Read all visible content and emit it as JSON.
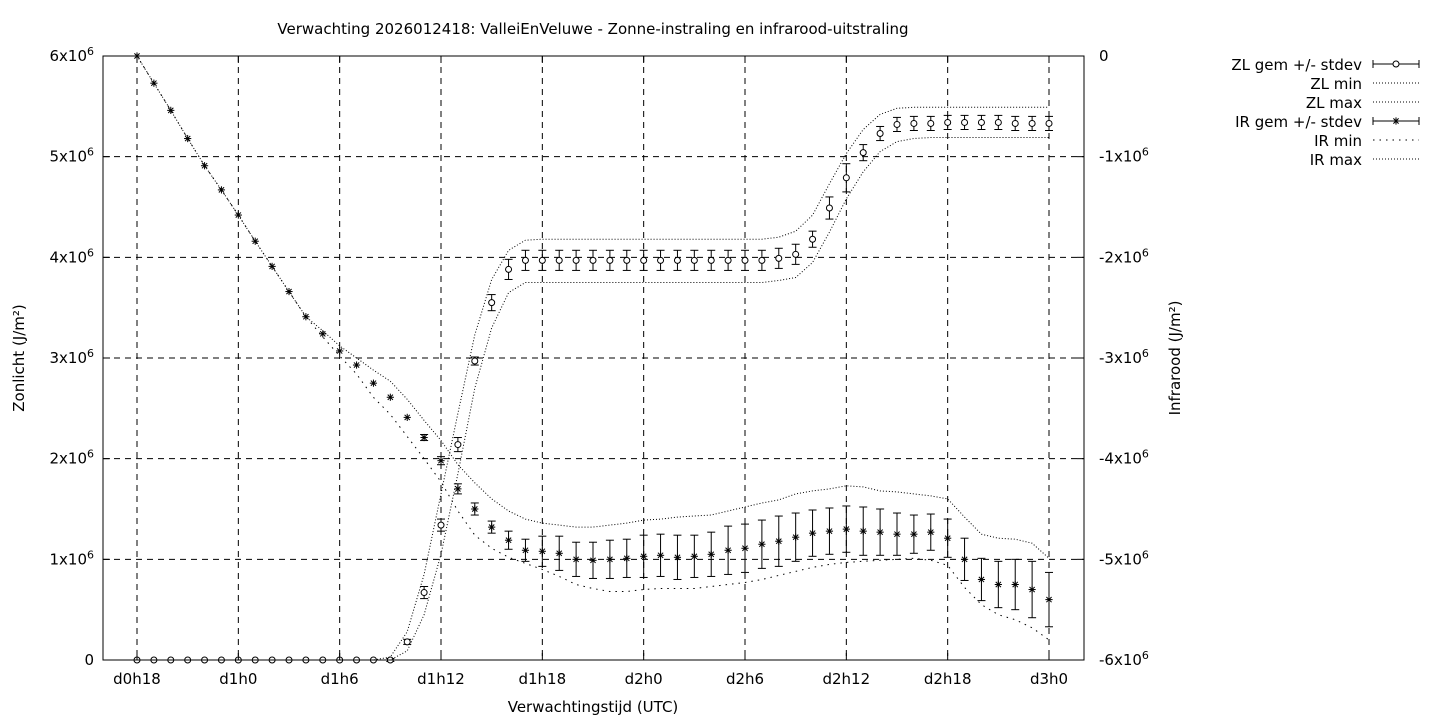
{
  "chart_data": {
    "type": "line",
    "title": "Verwachting 2026012418: ValleiEnVeluwe - Zonne-instraling en infrarood-uitstraling",
    "xlabel": "Verwachtingstijd (UTC)",
    "ylabel_left": "Zonlicht (J/m²)",
    "ylabel_right": "Infrarood (J/m²)",
    "x_unit": "hours since d0h0",
    "xlim": [
      18,
      72
    ],
    "ylim_left": [
      0,
      6000000
    ],
    "ylim_right": [
      -6000000,
      0
    ],
    "grid": true,
    "legend_position": "outside-top-right",
    "x_ticks": [
      {
        "x": 18,
        "label": "d0h18"
      },
      {
        "x": 24,
        "label": "d1h0"
      },
      {
        "x": 30,
        "label": "d1h6"
      },
      {
        "x": 36,
        "label": "d1h12"
      },
      {
        "x": 42,
        "label": "d1h18"
      },
      {
        "x": 48,
        "label": "d2h0"
      },
      {
        "x": 54,
        "label": "d2h6"
      },
      {
        "x": 60,
        "label": "d2h12"
      },
      {
        "x": 66,
        "label": "d2h18"
      },
      {
        "x": 72,
        "label": "d3h0"
      }
    ],
    "y_ticks_left": [
      {
        "y": 0,
        "base": "0",
        "exp": ""
      },
      {
        "y": 1000000,
        "base": "1x10",
        "exp": "6"
      },
      {
        "y": 2000000,
        "base": "2x10",
        "exp": "6"
      },
      {
        "y": 3000000,
        "base": "3x10",
        "exp": "6"
      },
      {
        "y": 4000000,
        "base": "4x10",
        "exp": "6"
      },
      {
        "y": 5000000,
        "base": "5x10",
        "exp": "6"
      },
      {
        "y": 6000000,
        "base": "6x10",
        "exp": "6"
      }
    ],
    "y_ticks_right": [
      {
        "y": -6000000,
        "base": "-6x10",
        "exp": "6"
      },
      {
        "y": -5000000,
        "base": "-5x10",
        "exp": "6"
      },
      {
        "y": -4000000,
        "base": "-4x10",
        "exp": "6"
      },
      {
        "y": -3000000,
        "base": "-3x10",
        "exp": "6"
      },
      {
        "y": -2000000,
        "base": "-2x10",
        "exp": "6"
      },
      {
        "y": -1000000,
        "base": "-1x10",
        "exp": "6"
      },
      {
        "y": 0,
        "base": "0",
        "exp": ""
      }
    ],
    "x": [
      18,
      19,
      20,
      21,
      22,
      23,
      24,
      25,
      26,
      27,
      28,
      29,
      30,
      31,
      32,
      33,
      34,
      35,
      36,
      37,
      38,
      39,
      40,
      41,
      42,
      43,
      44,
      45,
      46,
      47,
      48,
      49,
      50,
      51,
      52,
      53,
      54,
      55,
      56,
      57,
      58,
      59,
      60,
      61,
      62,
      63,
      64,
      65,
      66,
      67,
      68,
      69,
      70,
      71,
      72
    ],
    "series": [
      {
        "name": "ZL gem +/- stdev",
        "axis": "left",
        "style": "errorbars-circle",
        "mean": [
          0,
          0,
          0,
          0,
          0,
          0,
          0,
          0,
          0,
          0,
          0,
          0,
          0,
          0,
          0,
          0,
          180000,
          670000,
          1340000,
          2140000,
          2970000,
          3550000,
          3880000,
          3970000,
          3970000,
          3970000,
          3970000,
          3970000,
          3970000,
          3970000,
          3970000,
          3970000,
          3970000,
          3970000,
          3970000,
          3970000,
          3970000,
          3970000,
          3990000,
          4030000,
          4180000,
          4490000,
          4790000,
          5040000,
          5230000,
          5320000,
          5330000,
          5330000,
          5340000,
          5340000,
          5340000,
          5340000,
          5330000,
          5330000,
          5330000
        ],
        "stdev": [
          0,
          0,
          0,
          0,
          0,
          0,
          0,
          0,
          0,
          0,
          0,
          0,
          0,
          0,
          0,
          15000,
          25000,
          60000,
          60000,
          70000,
          40000,
          80000,
          100000,
          100000,
          100000,
          100000,
          100000,
          100000,
          100000,
          100000,
          100000,
          100000,
          100000,
          100000,
          100000,
          100000,
          100000,
          100000,
          100000,
          100000,
          80000,
          110000,
          140000,
          80000,
          70000,
          70000,
          70000,
          70000,
          70000,
          70000,
          70000,
          70000,
          70000,
          70000,
          70000
        ]
      },
      {
        "name": "ZL min",
        "axis": "left",
        "style": "dotted",
        "values": [
          0,
          0,
          0,
          0,
          0,
          0,
          0,
          0,
          0,
          0,
          0,
          0,
          0,
          0,
          0,
          0,
          90000,
          450000,
          1050000,
          1850000,
          2700000,
          3300000,
          3650000,
          3750000,
          3750000,
          3750000,
          3750000,
          3750000,
          3750000,
          3750000,
          3750000,
          3750000,
          3750000,
          3750000,
          3750000,
          3750000,
          3750000,
          3750000,
          3770000,
          3800000,
          3950000,
          4250000,
          4580000,
          4850000,
          5050000,
          5150000,
          5180000,
          5190000,
          5190000,
          5190000,
          5190000,
          5190000,
          5190000,
          5190000,
          5190000
        ]
      },
      {
        "name": "ZL max",
        "axis": "left",
        "style": "dotted",
        "values": [
          0,
          0,
          0,
          0,
          0,
          0,
          0,
          0,
          0,
          0,
          0,
          0,
          0,
          0,
          0,
          30000,
          280000,
          850000,
          1650000,
          2450000,
          3230000,
          3780000,
          4070000,
          4170000,
          4180000,
          4180000,
          4180000,
          4180000,
          4180000,
          4180000,
          4180000,
          4180000,
          4180000,
          4180000,
          4180000,
          4180000,
          4180000,
          4180000,
          4200000,
          4260000,
          4420000,
          4730000,
          5030000,
          5270000,
          5420000,
          5480000,
          5490000,
          5490000,
          5490000,
          5490000,
          5490000,
          5490000,
          5490000,
          5490000,
          5490000
        ]
      },
      {
        "name": "IR gem +/- stdev",
        "axis": "right",
        "style": "errorbars-asterisk",
        "mean": [
          0,
          -270000,
          -540000,
          -820000,
          -1090000,
          -1330000,
          -1580000,
          -1840000,
          -2090000,
          -2340000,
          -2590000,
          -2760000,
          -2930000,
          -3070000,
          -3250000,
          -3390000,
          -3590000,
          -3790000,
          -4020000,
          -4300000,
          -4500000,
          -4680000,
          -4810000,
          -4910000,
          -4920000,
          -4940000,
          -5000000,
          -5010000,
          -5000000,
          -4990000,
          -4970000,
          -4960000,
          -4980000,
          -4970000,
          -4950000,
          -4910000,
          -4890000,
          -4850000,
          -4820000,
          -4780000,
          -4740000,
          -4720000,
          -4700000,
          -4720000,
          -4730000,
          -4750000,
          -4750000,
          -4730000,
          -4790000,
          -5000000,
          -5200000,
          -5250000,
          -5250000,
          -5300000,
          -5400000
        ],
        "stdev": [
          0,
          0,
          0,
          0,
          0,
          0,
          0,
          0,
          0,
          0,
          0,
          0,
          0,
          0,
          0,
          0,
          0,
          30000,
          40000,
          50000,
          60000,
          60000,
          90000,
          110000,
          150000,
          170000,
          170000,
          180000,
          190000,
          190000,
          210000,
          210000,
          220000,
          210000,
          220000,
          240000,
          240000,
          240000,
          250000,
          240000,
          230000,
          230000,
          230000,
          240000,
          230000,
          210000,
          190000,
          180000,
          190000,
          210000,
          210000,
          230000,
          250000,
          280000,
          270000
        ]
      },
      {
        "name": "IR min",
        "axis": "right",
        "style": "dotted-sparse",
        "values": [
          0,
          -270000,
          -540000,
          -820000,
          -1090000,
          -1330000,
          -1580000,
          -1840000,
          -2090000,
          -2340000,
          -2590000,
          -2790000,
          -2980000,
          -3160000,
          -3390000,
          -3560000,
          -3780000,
          -4000000,
          -4230000,
          -4520000,
          -4760000,
          -4890000,
          -4980000,
          -5040000,
          -5100000,
          -5170000,
          -5250000,
          -5290000,
          -5320000,
          -5320000,
          -5300000,
          -5290000,
          -5290000,
          -5290000,
          -5270000,
          -5250000,
          -5230000,
          -5200000,
          -5160000,
          -5120000,
          -5080000,
          -5050000,
          -5030000,
          -5020000,
          -5010000,
          -5000000,
          -4990000,
          -5010000,
          -5060000,
          -5280000,
          -5450000,
          -5550000,
          -5600000,
          -5680000,
          -5800000
        ]
      },
      {
        "name": "IR max",
        "axis": "right",
        "style": "dotted",
        "values": [
          0,
          -270000,
          -540000,
          -820000,
          -1090000,
          -1330000,
          -1580000,
          -1840000,
          -2090000,
          -2340000,
          -2590000,
          -2730000,
          -2880000,
          -3000000,
          -3120000,
          -3230000,
          -3410000,
          -3620000,
          -3820000,
          -4060000,
          -4240000,
          -4400000,
          -4520000,
          -4600000,
          -4640000,
          -4660000,
          -4680000,
          -4680000,
          -4660000,
          -4640000,
          -4610000,
          -4600000,
          -4580000,
          -4570000,
          -4560000,
          -4520000,
          -4480000,
          -4440000,
          -4410000,
          -4350000,
          -4320000,
          -4300000,
          -4270000,
          -4280000,
          -4320000,
          -4330000,
          -4350000,
          -4370000,
          -4400000,
          -4580000,
          -4750000,
          -4790000,
          -4800000,
          -4840000,
          -4990000
        ]
      }
    ]
  }
}
